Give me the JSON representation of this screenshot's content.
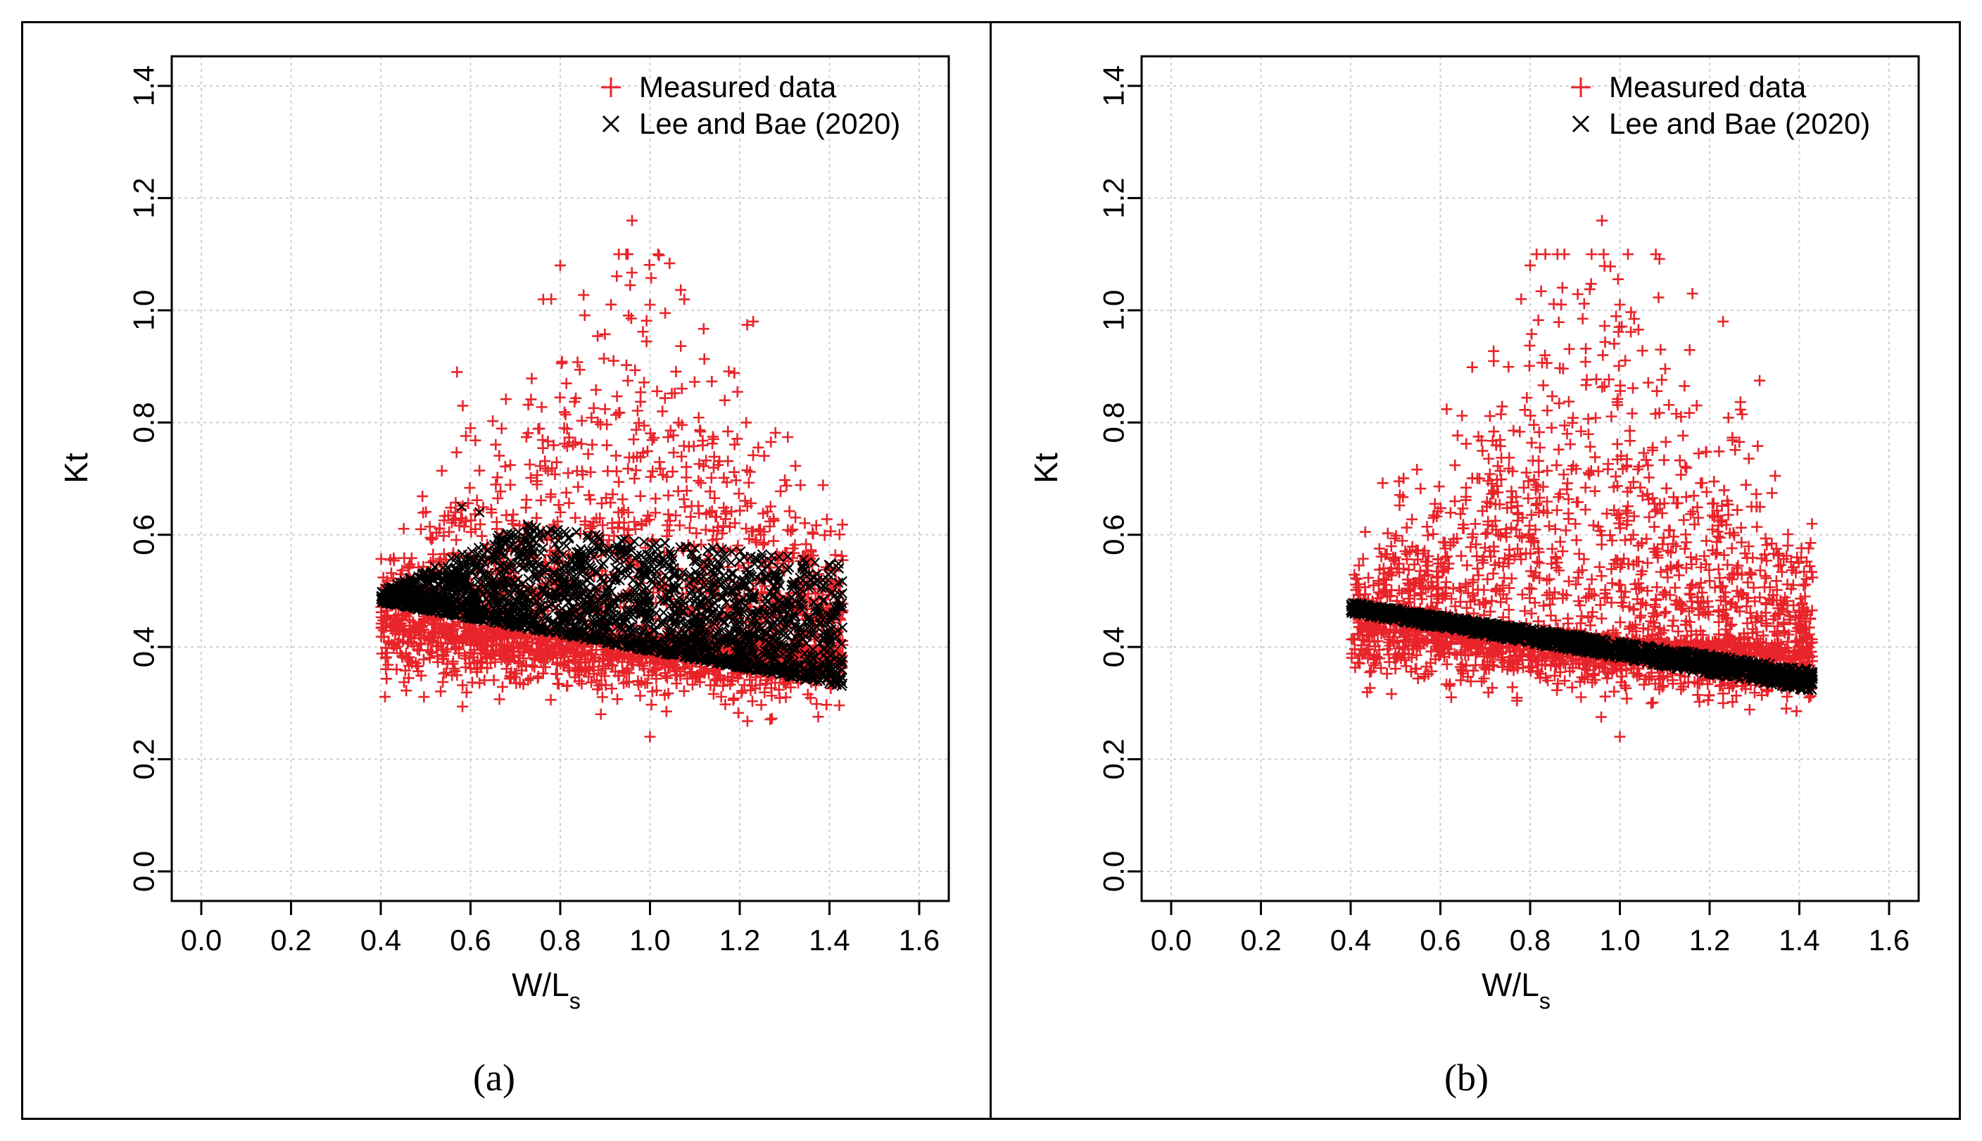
{
  "chart_data": [
    {
      "type": "scatter",
      "panel_label": "(a)",
      "xlabel_main": "W/L",
      "xlabel_sub": "s",
      "ylabel": "Kt",
      "xlim": [
        0.0,
        1.6
      ],
      "ylim": [
        0.0,
        1.4
      ],
      "xticks": [
        "0.0",
        "0.2",
        "0.4",
        "0.6",
        "0.8",
        "1.0",
        "1.2",
        "1.4",
        "1.6"
      ],
      "yticks": [
        "0.0",
        "0.2",
        "0.4",
        "0.6",
        "0.8",
        "1.0",
        "1.2",
        "1.4"
      ],
      "grid": true,
      "legend_position": "top-right",
      "colors": {
        "measured": "#e8242a",
        "model": "#000000"
      },
      "series": [
        {
          "name": "Measured data",
          "marker": "+",
          "cloud": {
            "x_range": [
              0.4,
              1.43
            ],
            "kt_center_at_x_0_4": 0.45,
            "kt_center_at_x_1_43": 0.4,
            "kt_min": 0.24,
            "kt_max": 1.16
          },
          "notable_points": [
            [
              0.96,
              1.16
            ],
            [
              0.8,
              1.08
            ],
            [
              0.57,
              0.89
            ],
            [
              0.78,
              1.02
            ],
            [
              1.0,
              1.01
            ],
            [
              1.23,
              0.98
            ],
            [
              0.6,
              0.79
            ],
            [
              1.0,
              0.24
            ]
          ]
        },
        {
          "name": "Lee and Bae (2020)",
          "marker": "x",
          "band": {
            "lower": [
              [
                0.4,
                0.48
              ],
              [
                1.43,
                0.33
              ]
            ],
            "upper": [
              [
                0.4,
                0.5
              ],
              [
                0.72,
                0.62
              ],
              [
                1.0,
                0.59
              ],
              [
                1.43,
                0.55
              ]
            ]
          },
          "notable_points": [
            [
              0.58,
              0.65
            ],
            [
              0.62,
              0.64
            ],
            [
              0.7,
              0.6
            ]
          ]
        }
      ]
    },
    {
      "type": "scatter",
      "panel_label": "(b)",
      "xlabel_main": "W/L",
      "xlabel_sub": "s",
      "ylabel": "Kt",
      "xlim": [
        0.0,
        1.6
      ],
      "ylim": [
        0.0,
        1.4
      ],
      "xticks": [
        "0.0",
        "0.2",
        "0.4",
        "0.6",
        "0.8",
        "1.0",
        "1.2",
        "1.4",
        "1.6"
      ],
      "yticks": [
        "0.0",
        "0.2",
        "0.4",
        "0.6",
        "0.8",
        "1.0",
        "1.2",
        "1.4"
      ],
      "grid": true,
      "legend_position": "top-right",
      "colors": {
        "measured": "#e8242a",
        "model": "#000000"
      },
      "series": [
        {
          "name": "Measured data",
          "marker": "+",
          "cloud": {
            "x_range": [
              0.4,
              1.43
            ],
            "kt_center_at_x_0_4": 0.45,
            "kt_center_at_x_1_43": 0.4,
            "kt_min": 0.24,
            "kt_max": 1.16
          },
          "notable_points": [
            [
              0.96,
              1.16
            ],
            [
              0.8,
              1.08
            ],
            [
              0.78,
              1.02
            ],
            [
              1.0,
              1.01
            ],
            [
              1.23,
              0.98
            ],
            [
              1.0,
              0.24
            ]
          ]
        },
        {
          "name": "Lee and Bae (2020)",
          "marker": "x",
          "band": {
            "lower": [
              [
                0.4,
                0.46
              ],
              [
                1.43,
                0.32
              ]
            ],
            "upper": [
              [
                0.4,
                0.48
              ],
              [
                1.43,
                0.36
              ]
            ]
          },
          "notable_points": []
        }
      ]
    }
  ]
}
